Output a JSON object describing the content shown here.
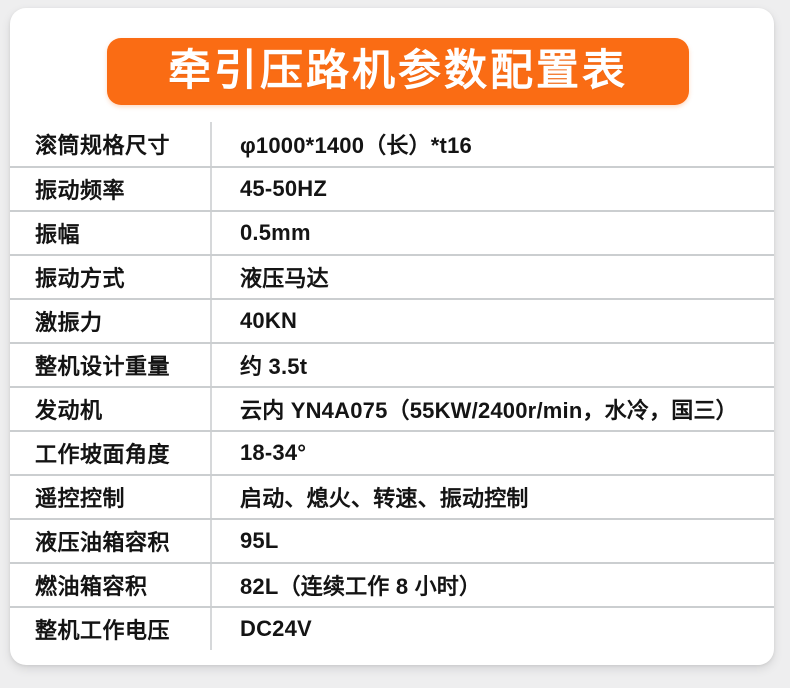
{
  "header": {
    "title": "牵引压路机参数配置表",
    "accent_color": "#fa6c14",
    "title_color": "#ffffff"
  },
  "page": {
    "background_color": "#eeeeef",
    "card_color": "#ffffff",
    "line_color": "#cbced0",
    "text_color": "#141414"
  },
  "table": {
    "rows": [
      {
        "label": "滚筒规格尺寸",
        "value": "φ1000*1400（长）*t16"
      },
      {
        "label": "振动频率",
        "value": "45-50HZ"
      },
      {
        "label": "振幅",
        "value": "0.5mm"
      },
      {
        "label": "振动方式",
        "value": "液压马达"
      },
      {
        "label": "激振力",
        "value": "40KN"
      },
      {
        "label": "整机设计重量",
        "value": "约 3.5t"
      },
      {
        "label": "发动机",
        "value": "云内 YN4A075（55KW/2400r/min，水冷，国三）"
      },
      {
        "label": "工作坡面角度",
        "value": "18-34°"
      },
      {
        "label": "遥控控制",
        "value": "启动、熄火、转速、振动控制"
      },
      {
        "label": "液压油箱容积",
        "value": "95L"
      },
      {
        "label": "燃油箱容积",
        "value": "82L（连续工作 8 小时）"
      },
      {
        "label": "整机工作电压",
        "value": "DC24V"
      }
    ]
  }
}
